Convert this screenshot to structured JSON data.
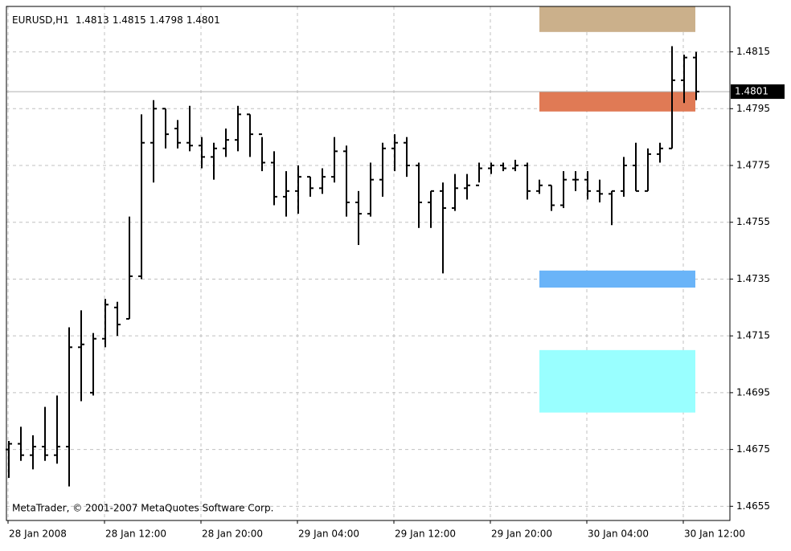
{
  "chart_data": {
    "type": "ohlc",
    "title": "EURUSD,H1",
    "watermark": "MetaTrader, © 2001-2007 MetaQuotes Software Corp.",
    "categories": [
      "28 Jan 2008",
      null,
      null,
      null,
      null,
      null,
      null,
      null,
      "28 Jan 12:00",
      null,
      null,
      null,
      null,
      null,
      null,
      null,
      "28 Jan 20:00",
      null,
      null,
      null,
      null,
      null,
      null,
      null,
      "29 Jan 04:00",
      null,
      null,
      null,
      null,
      null,
      null,
      null,
      "29 Jan 12:00",
      null,
      null,
      null,
      null,
      null,
      null,
      null,
      "29 Jan 20:00",
      null,
      null,
      null,
      null,
      null,
      null,
      null,
      "30 Jan 04:00",
      null,
      null,
      null,
      null,
      null,
      null,
      null,
      "30 Jan 12:00",
      null
    ],
    "open": [
      1.4675,
      1.4677,
      1.4673,
      1.4676,
      1.4673,
      1.4676,
      1.4711,
      1.4695,
      1.4714,
      1.4725,
      1.4721,
      1.4736,
      1.4783,
      1.4795,
      1.4788,
      1.4783,
      1.4782,
      1.4778,
      1.4781,
      1.4784,
      1.4793,
      1.4786,
      1.4776,
      1.4764,
      1.4766,
      1.4771,
      1.4767,
      1.4771,
      1.478,
      1.4762,
      1.4758,
      1.477,
      1.4781,
      1.4783,
      1.4775,
      1.4762,
      1.4766,
      1.476,
      1.4767,
      1.4768,
      1.4774,
      1.4775,
      1.4774,
      1.4775,
      1.4766,
      1.4768,
      1.4761,
      1.477,
      1.477,
      1.4766,
      1.4765,
      1.4766,
      1.4775,
      1.4766,
      1.4779,
      1.4781,
      1.4805,
      1.4813
    ],
    "high": [
      1.4678,
      1.4683,
      1.468,
      1.469,
      1.4694,
      1.4718,
      1.4724,
      1.4716,
      1.4728,
      1.4727,
      1.4757,
      1.4793,
      1.4798,
      1.4795,
      1.4791,
      1.4796,
      1.4785,
      1.4783,
      1.4788,
      1.4796,
      1.4793,
      1.4785,
      1.478,
      1.4773,
      1.4775,
      1.4771,
      1.4774,
      1.4785,
      1.4782,
      1.4766,
      1.4776,
      1.4783,
      1.4786,
      1.4785,
      1.4776,
      1.4766,
      1.4769,
      1.4772,
      1.4772,
      1.4776,
      1.4776,
      1.4776,
      1.4777,
      1.4776,
      1.477,
      1.4768,
      1.4773,
      1.4773,
      1.4773,
      1.477,
      1.4766,
      1.4778,
      1.4783,
      1.4781,
      1.4783,
      1.4817,
      1.4814,
      1.4815
    ],
    "low": [
      1.4665,
      1.4671,
      1.4668,
      1.4671,
      1.467,
      1.4662,
      1.4692,
      1.4694,
      1.4711,
      1.4715,
      1.4721,
      1.4735,
      1.4769,
      1.4781,
      1.4781,
      1.478,
      1.4774,
      1.477,
      1.4778,
      1.478,
      1.4778,
      1.4773,
      1.4761,
      1.4757,
      1.4758,
      1.4764,
      1.4765,
      1.4769,
      1.4757,
      1.4747,
      1.4757,
      1.4764,
      1.4773,
      1.4771,
      1.4753,
      1.4753,
      1.4737,
      1.4759,
      1.4763,
      1.4769,
      1.4772,
      1.4773,
      1.4773,
      1.4763,
      1.4765,
      1.4759,
      1.476,
      1.4766,
      1.4763,
      1.4762,
      1.4754,
      1.4764,
      1.4766,
      1.4766,
      1.4776,
      1.4781,
      1.4797,
      1.4798
    ],
    "close": [
      1.4677,
      1.4673,
      1.4676,
      1.4673,
      1.4676,
      1.4711,
      1.4712,
      1.4714,
      1.4726,
      1.4719,
      1.4736,
      1.4783,
      1.4795,
      1.4786,
      1.4783,
      1.4782,
      1.4778,
      1.4781,
      1.4784,
      1.4793,
      1.4786,
      1.4776,
      1.4764,
      1.4766,
      1.4771,
      1.4767,
      1.4771,
      1.478,
      1.4762,
      1.4758,
      1.477,
      1.4781,
      1.4783,
      1.4775,
      1.4762,
      1.4766,
      1.476,
      1.4767,
      1.4768,
      1.4774,
      1.4775,
      1.4774,
      1.4775,
      1.4766,
      1.4768,
      1.4761,
      1.477,
      1.477,
      1.4766,
      1.4765,
      1.4766,
      1.4775,
      1.4766,
      1.4779,
      1.4781,
      1.4805,
      1.4813,
      1.4801
    ],
    "color": "#000000",
    "zones": [
      {
        "high": 1.4831,
        "low": 1.4822,
        "color": "#cbb08b"
      },
      {
        "high": 1.4801,
        "low": 1.4794,
        "color": "#e07a55"
      },
      {
        "high": 1.4738,
        "low": 1.4732,
        "color": "#6ab4f8"
      },
      {
        "high": 1.471,
        "low": 1.4688,
        "color": "#99ffff"
      }
    ],
    "ylim": [
      1.465,
      1.4831
    ],
    "yticks": [
      1.4655,
      1.4675,
      1.4695,
      1.4715,
      1.4735,
      1.4755,
      1.4775,
      1.4795,
      1.4815
    ],
    "grid": true
  }
}
